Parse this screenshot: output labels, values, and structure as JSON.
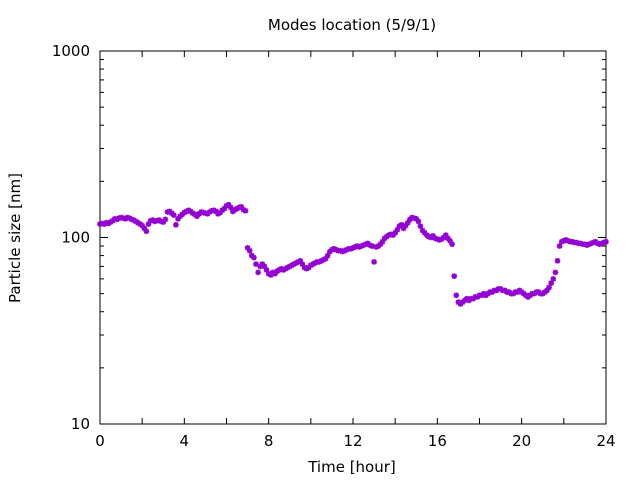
{
  "chart_data": {
    "type": "scatter",
    "title": "Modes location (5/9/1)",
    "xlabel": "Time [hour]",
    "ylabel": "Particle size [nm]",
    "xlim": [
      0,
      24
    ],
    "ylim": [
      10,
      1000
    ],
    "yscale": "log",
    "xticks": [
      0,
      4,
      8,
      12,
      16,
      20,
      24
    ],
    "xtick_labels": [
      "0",
      "4",
      "8",
      "12",
      "16",
      "20",
      "24"
    ],
    "yticks": [
      10,
      100,
      1000
    ],
    "ytick_labels": [
      "10",
      "100",
      "1000"
    ],
    "grid": false,
    "marker": "asterisk",
    "colors": {
      "series": "#9400d3"
    },
    "points_x": [
      0.0,
      0.1,
      0.2,
      0.3,
      0.4,
      0.5,
      0.6,
      0.7,
      0.8,
      0.9,
      1.0,
      1.1,
      1.2,
      1.3,
      1.4,
      1.5,
      1.6,
      1.7,
      1.8,
      1.9,
      2.0,
      2.1,
      2.2,
      2.3,
      2.4,
      2.5,
      2.6,
      2.7,
      2.8,
      2.9,
      3.0,
      3.1,
      3.2,
      3.3,
      3.4,
      3.5,
      3.6,
      3.7,
      3.8,
      3.9,
      4.0,
      4.1,
      4.2,
      4.3,
      4.4,
      4.5,
      4.6,
      4.7,
      4.8,
      4.9,
      5.0,
      5.1,
      5.2,
      5.3,
      5.4,
      5.5,
      5.6,
      5.7,
      5.8,
      5.9,
      6.0,
      6.1,
      6.2,
      6.3,
      6.4,
      6.5,
      6.6,
      6.7,
      6.8,
      6.9,
      7.0,
      7.1,
      7.2,
      7.3,
      7.4,
      7.5,
      7.6,
      7.7,
      7.8,
      7.9,
      8.0,
      8.1,
      8.2,
      8.3,
      8.4,
      8.5,
      8.6,
      8.7,
      8.8,
      8.9,
      9.0,
      9.1,
      9.2,
      9.3,
      9.4,
      9.5,
      9.6,
      9.7,
      9.8,
      9.9,
      10.0,
      10.1,
      10.2,
      10.3,
      10.4,
      10.5,
      10.6,
      10.7,
      10.8,
      10.9,
      11.0,
      11.1,
      11.2,
      11.3,
      11.4,
      11.5,
      11.6,
      11.7,
      11.8,
      11.9,
      12.0,
      12.1,
      12.2,
      12.3,
      12.4,
      12.5,
      12.6,
      12.7,
      12.8,
      12.9,
      13.0,
      13.1,
      13.2,
      13.3,
      13.4,
      13.5,
      13.6,
      13.7,
      13.8,
      13.9,
      14.0,
      14.1,
      14.2,
      14.3,
      14.4,
      14.5,
      14.6,
      14.7,
      14.8,
      14.9,
      15.0,
      15.1,
      15.2,
      15.3,
      15.4,
      15.5,
      15.6,
      15.7,
      15.8,
      15.9,
      16.0,
      16.1,
      16.2,
      16.3,
      16.4,
      16.5,
      16.6,
      16.7,
      16.8,
      16.9,
      17.0,
      17.1,
      17.2,
      17.3,
      17.4,
      17.5,
      17.6,
      17.7,
      17.8,
      17.9,
      18.0,
      18.1,
      18.2,
      18.3,
      18.4,
      18.5,
      18.6,
      18.7,
      18.8,
      18.9,
      19.0,
      19.1,
      19.2,
      19.3,
      19.4,
      19.5,
      19.6,
      19.7,
      19.8,
      19.9,
      20.0,
      20.1,
      20.2,
      20.3,
      20.4,
      20.5,
      20.6,
      20.7,
      20.8,
      20.9,
      21.0,
      21.1,
      21.2,
      21.3,
      21.4,
      21.5,
      21.6,
      21.7,
      21.8,
      21.9,
      22.0,
      22.1,
      22.2,
      22.3,
      22.4,
      22.5,
      22.6,
      22.7,
      22.8,
      22.9,
      23.0,
      23.1,
      23.2,
      23.3,
      23.4,
      23.5,
      23.6,
      23.7,
      23.8,
      23.9,
      24.0
    ],
    "points_y": [
      118,
      119,
      118,
      120,
      119,
      121,
      123,
      126,
      125,
      127,
      128,
      127,
      126,
      128,
      127,
      125,
      124,
      122,
      120,
      118,
      116,
      112,
      108,
      118,
      123,
      124,
      122,
      123,
      124,
      122,
      121,
      125,
      137,
      138,
      135,
      132,
      117,
      126,
      130,
      133,
      136,
      138,
      140,
      138,
      135,
      133,
      130,
      134,
      137,
      136,
      135,
      134,
      137,
      139,
      140,
      138,
      134,
      136,
      140,
      143,
      148,
      150,
      145,
      138,
      141,
      143,
      145,
      146,
      141,
      139,
      88,
      85,
      80,
      78,
      72,
      65,
      70,
      72,
      70,
      67,
      64,
      63,
      65,
      64,
      66,
      67,
      68,
      67,
      68,
      69,
      70,
      71,
      72,
      73,
      74,
      75,
      72,
      69,
      68,
      69,
      71,
      72,
      73,
      74,
      74,
      75,
      76,
      77,
      80,
      84,
      86,
      87,
      86,
      85,
      85,
      84,
      85,
      86,
      87,
      87,
      88,
      89,
      90,
      89,
      90,
      91,
      92,
      93,
      91,
      90,
      74,
      89,
      90,
      92,
      95,
      99,
      101,
      103,
      104,
      103,
      106,
      110,
      115,
      117,
      112,
      116,
      120,
      125,
      128,
      127,
      126,
      122,
      115,
      109,
      106,
      103,
      101,
      100,
      102,
      99,
      98,
      97,
      98,
      100,
      103,
      99,
      96,
      92,
      62,
      49,
      45,
      44,
      45,
      46,
      47,
      46,
      47,
      47,
      48,
      48,
      49,
      49,
      50,
      49,
      50,
      51,
      51,
      52,
      52,
      53,
      53,
      52,
      52,
      51,
      51,
      50,
      50,
      51,
      51,
      52,
      51,
      50,
      49,
      48,
      49,
      50,
      50,
      51,
      51,
      50,
      50,
      51,
      52,
      54,
      57,
      60,
      65,
      75,
      90,
      95,
      96,
      97,
      96,
      95,
      95,
      94,
      94,
      93,
      93,
      92,
      92,
      91,
      92,
      93,
      94,
      95,
      93,
      92,
      93,
      94,
      95
    ]
  }
}
